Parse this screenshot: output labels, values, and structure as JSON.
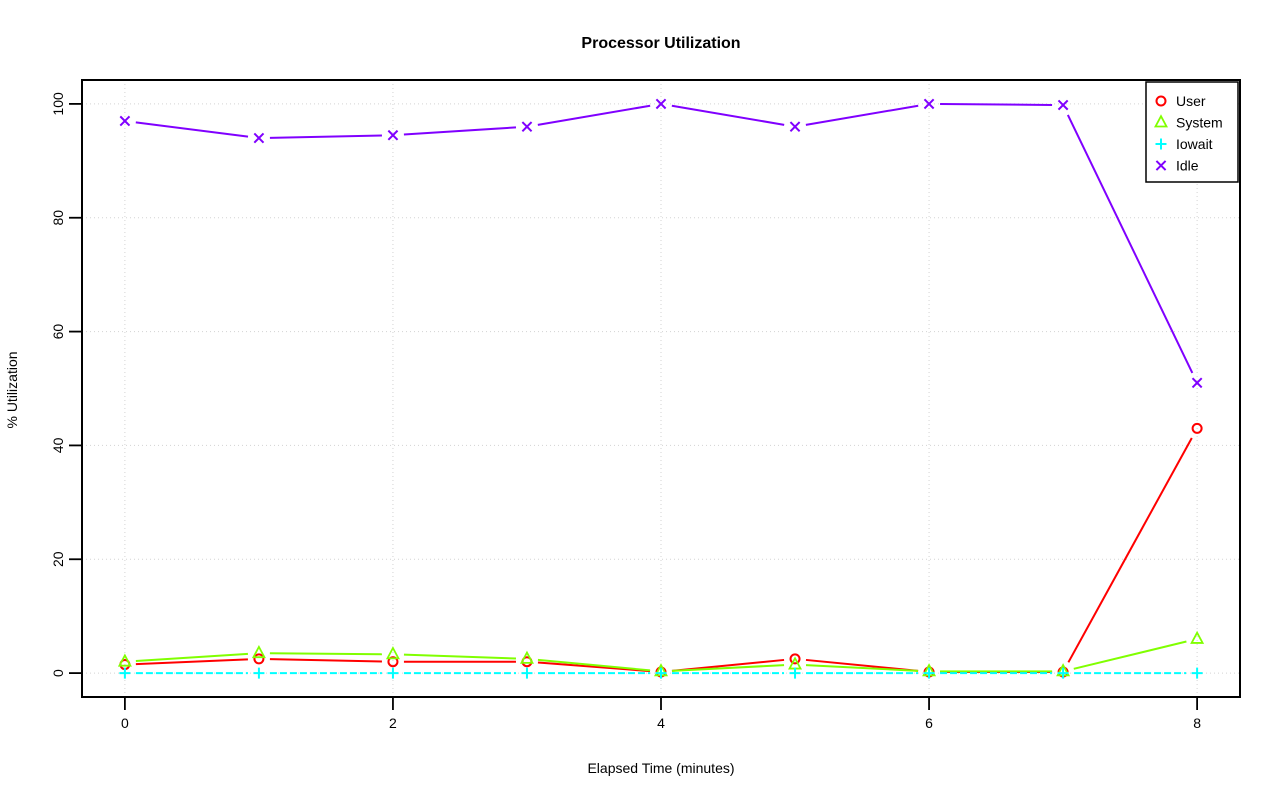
{
  "chart_data": {
    "type": "line",
    "title": "Processor Utilization",
    "xlabel": "Elapsed Time (minutes)",
    "ylabel": "% Utilization",
    "x": [
      0,
      1,
      2,
      3,
      4,
      5,
      6,
      7,
      8
    ],
    "xticks": [
      0,
      2,
      4,
      6,
      8
    ],
    "yticks": [
      0,
      20,
      40,
      60,
      80,
      100
    ],
    "xlim": [
      -0.32,
      8.32
    ],
    "ylim": [
      -4.2,
      104.2
    ],
    "grid": true,
    "grid_color": "#d3d3d3",
    "axis_color": "#000000",
    "background_color": "#ffffff",
    "legend_position": "top-right",
    "series": [
      {
        "name": "User",
        "color": "#ff0000",
        "marker": "circle",
        "line_style": "solid",
        "values": [
          1.5,
          2.5,
          2.0,
          2.0,
          0.2,
          2.5,
          0.2,
          0.2,
          43.0
        ]
      },
      {
        "name": "System",
        "color": "#80ff00",
        "marker": "triangle",
        "line_style": "solid",
        "values": [
          2.0,
          3.5,
          3.3,
          2.5,
          0.3,
          1.5,
          0.3,
          0.3,
          6.0
        ]
      },
      {
        "name": "Iowait",
        "color": "#00ffff",
        "marker": "plus",
        "line_style": "dashed",
        "values": [
          0,
          0,
          0,
          0,
          0,
          0,
          0,
          0,
          0
        ]
      },
      {
        "name": "Idle",
        "color": "#8000ff",
        "marker": "x",
        "line_style": "solid",
        "values": [
          97.0,
          94.0,
          94.5,
          96.0,
          100.0,
          96.0,
          100.0,
          99.8,
          51.0
        ]
      }
    ]
  }
}
